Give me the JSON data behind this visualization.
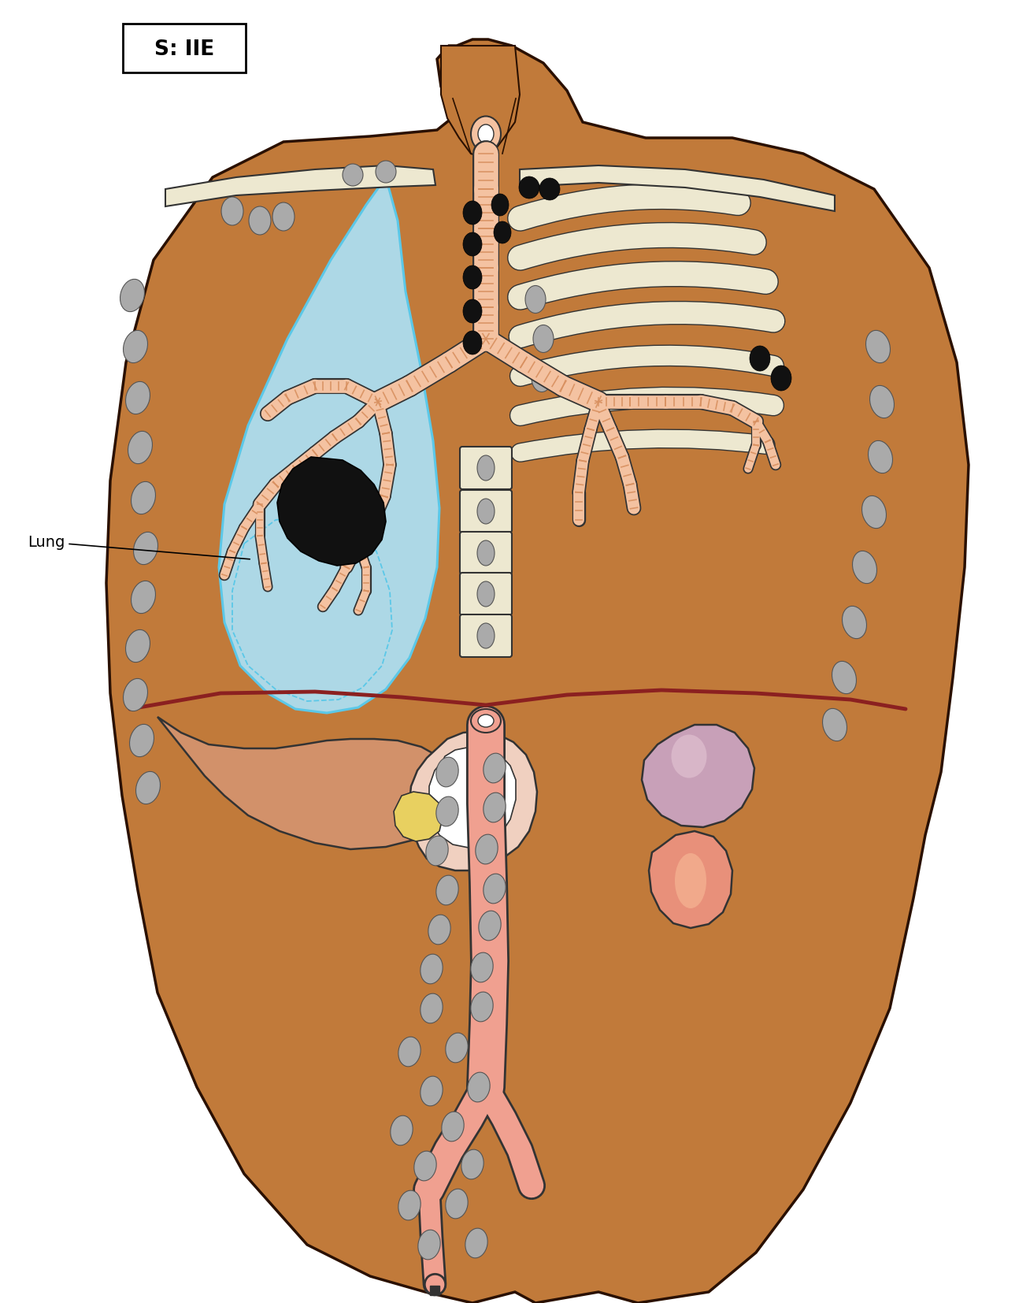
{
  "title_label": "S: IIE",
  "lung_label": "Lung",
  "skin_color": "#C17A3A",
  "skin_edge": "#2a1000",
  "lung_color": "#ADD8E6",
  "lung_border": "#5BC8E8",
  "bone_color": "#EDE8D0",
  "bone_border": "#333333",
  "black_node_color": "#111111",
  "gray_node_color": "#aaaaaa",
  "gray_node_edge": "#888888",
  "trachea_fill": "#F4C2A1",
  "trachea_ring": "#D89060",
  "trachea_edge": "#333333",
  "diaphragm_color": "#8B2020",
  "liver_color": "#D2916A",
  "liver_edge": "#333333",
  "gallbladder_color": "#E8D060",
  "stomach_color": "#F0D0C0",
  "stomach_edge": "#333333",
  "spleen_color": "#C8A0B8",
  "spleen_highlight": "#E0C0D0",
  "kidney_color": "#E8907A",
  "kidney_highlight": "#F4B090",
  "aorta_color": "#F0A090",
  "aorta_edge": "#333333",
  "bg_color": "#FFFFFF"
}
